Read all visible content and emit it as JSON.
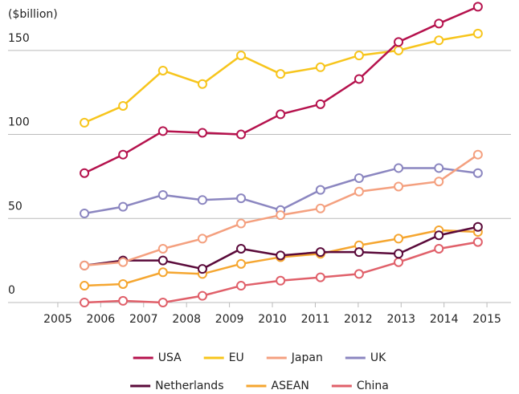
{
  "chart_data": {
    "type": "line",
    "y_label": "($billion)",
    "x": [
      2005.62,
      2006.52,
      2007.45,
      2008.37,
      2009.27,
      2010.19,
      2011.12,
      2012.02,
      2012.94,
      2013.88,
      2014.79
    ],
    "xlim": [
      2003.84,
      2015.56
    ],
    "xticks": [
      2005,
      2006,
      2007,
      2008,
      2009,
      2010,
      2011,
      2012,
      2013,
      2014,
      2015
    ],
    "ylim": [
      0,
      180
    ],
    "yticks": [
      0,
      50,
      100,
      150
    ],
    "grid": true,
    "series": [
      {
        "name": "USA",
        "color": "#b5124d",
        "values": [
          77,
          88,
          102,
          101,
          100,
          112,
          118,
          133,
          155,
          166,
          176
        ]
      },
      {
        "name": "EU",
        "color": "#f7c51c",
        "values": [
          107,
          117,
          138,
          130,
          147,
          136,
          140,
          147,
          150,
          156,
          160
        ]
      },
      {
        "name": "Japan",
        "color": "#f4a07f",
        "values": [
          22,
          24,
          32,
          38,
          47,
          52,
          56,
          66,
          69,
          72,
          88
        ]
      },
      {
        "name": "UK",
        "color": "#8b86c0",
        "values": [
          53,
          57,
          64,
          61,
          62,
          55,
          67,
          74,
          80,
          80,
          77
        ]
      },
      {
        "name": "Netherlands",
        "color": "#5a0a3a",
        "values": [
          22,
          25,
          25,
          20,
          32,
          28,
          30,
          30,
          29,
          40,
          45
        ]
      },
      {
        "name": "ASEAN",
        "color": "#f5a630",
        "values": [
          10,
          11,
          18,
          17,
          23,
          27,
          29,
          34,
          38,
          43,
          42
        ]
      },
      {
        "name": "China",
        "color": "#e0606a",
        "values": [
          0,
          1,
          0,
          4,
          10,
          13,
          15,
          17,
          24,
          32,
          36
        ]
      }
    ]
  }
}
